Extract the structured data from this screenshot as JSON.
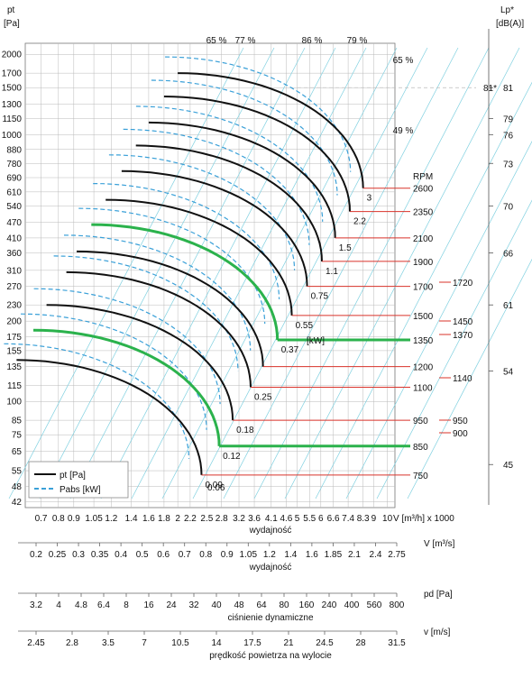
{
  "chart_data": {
    "type": "line",
    "y_axis_left": {
      "label_line1": "pt",
      "label_line2": "[Pa]",
      "scale": "log",
      "ticks": [
        42,
        48,
        55,
        65,
        75,
        85,
        100,
        115,
        135,
        155,
        175,
        200,
        230,
        270,
        310,
        360,
        410,
        470,
        540,
        610,
        690,
        780,
        880,
        1000,
        1150,
        1300,
        1500,
        1700,
        2000
      ]
    },
    "y_axis_right": {
      "label_line1": "Lp*",
      "label_line2": "[dB(A)]",
      "ticks": [
        {
          "v": 81,
          "pt": 1500
        },
        {
          "v": 79,
          "pt": 1150
        },
        {
          "v": 76,
          "pt": 1000
        },
        {
          "v": 73,
          "pt": 780
        },
        {
          "v": 70,
          "pt": 540
        },
        {
          "v": 66,
          "pt": 360
        },
        {
          "v": 61,
          "pt": 230
        },
        {
          "v": 54,
          "pt": 130
        },
        {
          "v": 45,
          "pt": 58
        }
      ],
      "marker": "81*"
    },
    "x_axis": {
      "label": "wydajność",
      "unit": "V [m³/h]  x 1000",
      "scale": "log",
      "ticks": [
        "0.7",
        "0.8",
        "0.9",
        "1.05",
        "1.2",
        "1.4",
        "1.6",
        "1.8",
        "2",
        "2.2",
        "2.5",
        "2.8",
        "3.2",
        "3.6",
        "4.1",
        "4.6",
        "5",
        "5.5",
        "6",
        "6.6",
        "7.4",
        "8.3",
        "9",
        "10"
      ]
    },
    "secondary_axes": [
      {
        "label": "wydajność",
        "unit": "V [m³/s]",
        "ticks": [
          "0.2",
          "0.25",
          "0.3",
          "0.35",
          "0.4",
          "0.5",
          "0.6",
          "0.7",
          "0.8",
          "0.9",
          "1.05",
          "1.2",
          "1.4",
          "1.6",
          "1.85",
          "2.1",
          "2.4",
          "2.75"
        ]
      },
      {
        "label": "ciśnienie dynamiczne",
        "unit": "pd [Pa]",
        "ticks": [
          "3.2",
          "4",
          "4.8",
          "6.4",
          "8",
          "16",
          "24",
          "32",
          "40",
          "48",
          "64",
          "80",
          "160",
          "240",
          "400",
          "560",
          "800"
        ]
      },
      {
        "label": "prędkość powietrza na wylocie",
        "unit": "v [m/s]",
        "ticks": [
          "2.45",
          "2.8",
          "3.5",
          "7",
          "10.5",
          "14",
          "17.5",
          "21",
          "24.5",
          "28",
          "31.5"
        ]
      }
    ],
    "efficiency_labels": [
      "65 %",
      "77 %",
      "86 %",
      "79 %",
      "65 %",
      "49 %"
    ],
    "rpm_header": "RPM",
    "rpm_curves": [
      {
        "rpm": "2600",
        "kw": "3",
        "apex_q": 2.0,
        "apex_p": 1700,
        "end_q": 8.3,
        "end_p": 630
      },
      {
        "rpm": "2350",
        "kw": "2.2",
        "apex_q": 1.8,
        "apex_p": 1390,
        "end_q": 7.5,
        "end_p": 515
      },
      {
        "rpm": "2100",
        "kw": "1.5",
        "apex_q": 1.6,
        "apex_p": 1110,
        "end_q": 6.7,
        "end_p": 410
      },
      {
        "rpm": "1900",
        "kw": "1.1",
        "apex_q": 1.45,
        "apex_p": 910,
        "end_q": 6.05,
        "end_p": 335
      },
      {
        "rpm": "1700",
        "kw": "0.75",
        "apex_q": 1.3,
        "apex_p": 730,
        "end_q": 5.4,
        "end_p": 270
      },
      {
        "rpm": "1500",
        "kw": "0.55",
        "apex_q": 1.15,
        "apex_p": 570,
        "end_q": 4.8,
        "end_p": 210
      },
      {
        "rpm": "1350",
        "kw": "0.37",
        "apex_q": 1.03,
        "apex_p": 460,
        "end_q": 4.3,
        "end_p": 170
      },
      {
        "rpm": "1200",
        "kw": "",
        "apex_q": 0.92,
        "apex_p": 365,
        "end_q": 3.85,
        "end_p": 135
      },
      {
        "rpm": "1100",
        "kw": "0.25",
        "apex_q": 0.85,
        "apex_p": 305,
        "end_q": 3.5,
        "end_p": 113
      },
      {
        "rpm": "950",
        "kw": "0.18",
        "apex_q": 0.73,
        "apex_p": 230,
        "end_q": 3.05,
        "end_p": 85
      },
      {
        "rpm": "850",
        "kw": "0.12",
        "apex_q": 0.66,
        "apex_p": 185,
        "end_q": 2.75,
        "end_p": 68
      },
      {
        "rpm": "750",
        "kw": "0.09",
        "apex_q": 0.58,
        "apex_p": 143,
        "end_q": 2.4,
        "end_p": 53
      }
    ],
    "kw_extra": [
      "0.06"
    ],
    "kw_unit": "[kW]",
    "highlight_rpm": [
      "1370",
      "900"
    ],
    "right_rpm_labels": [
      "1720",
      "1450",
      "1370",
      "1140",
      "950",
      "900"
    ],
    "legend": [
      {
        "name": "pt [Pa]",
        "color": "#111111",
        "style": "solid"
      },
      {
        "name": "Pabs [kW]",
        "color": "#3aa0d8",
        "style": "dashed"
      }
    ],
    "colors": {
      "pt": "#111111",
      "pabs": "#3aa0d8",
      "highlight": "#2bb24c",
      "rpm_line": "#d9332a",
      "grid": "#b9b9b9",
      "eff": "#7fd0e0"
    }
  }
}
